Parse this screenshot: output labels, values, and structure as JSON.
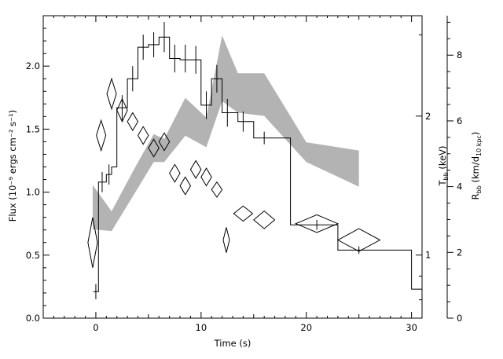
{
  "chart_data": {
    "type": "line",
    "xlabel": "Time (s)",
    "xlim": [
      -5,
      31
    ],
    "x_ticks": [
      0,
      10,
      20,
      30
    ],
    "left_axis": {
      "label": "Flux (10⁻⁹ ergs cm⁻² s⁻¹)",
      "range": [
        0,
        2.4
      ],
      "ticks": [
        0.0,
        0.5,
        1.0,
        1.5,
        2.0
      ],
      "tick_labels": [
        "0.0",
        "0.5",
        "1.0",
        "1.5",
        "2.0"
      ]
    },
    "right_axis_inner": {
      "label": "T_bb (keV)",
      "label_main": "T",
      "label_sub": "bb",
      "label_rest": " (keV)",
      "scale": "log",
      "range": [
        0.73,
        3.3
      ],
      "ticks": [
        1,
        2
      ],
      "tick_labels": [
        "1",
        "2"
      ]
    },
    "right_axis_outer": {
      "label": "R_bb (km/d_10 kpc)",
      "label_main": "R",
      "label_sub": "bb",
      "label_mid": " (km/d",
      "label_sub2": "10 kpc",
      "label_end": ")",
      "range": [
        0,
        9.2
      ],
      "ticks": [
        0,
        2,
        4,
        6,
        8
      ],
      "tick_labels": [
        "0",
        "2",
        "4",
        "6",
        "8"
      ]
    },
    "series": [
      {
        "kind": "flux-histogram",
        "color": "#000000",
        "bins": [
          {
            "x0": -0.25,
            "x1": 0.25,
            "y": 0.21
          },
          {
            "x0": 0.25,
            "x1": 1.0,
            "y": 1.08
          },
          {
            "x0": 1.0,
            "x1": 1.5,
            "y": 1.14
          },
          {
            "x0": 1.5,
            "x1": 2.0,
            "y": 1.2
          },
          {
            "x0": 2.0,
            "x1": 3.0,
            "y": 1.67
          },
          {
            "x0": 3.0,
            "x1": 4.0,
            "y": 1.9
          },
          {
            "x0": 4.0,
            "x1": 5.0,
            "y": 2.15
          },
          {
            "x0": 5.0,
            "x1": 6.0,
            "y": 2.17
          },
          {
            "x0": 6.0,
            "x1": 7.0,
            "y": 2.23
          },
          {
            "x0": 7.0,
            "x1": 8.0,
            "y": 2.06
          },
          {
            "x0": 8.0,
            "x1": 10.0,
            "y": 2.05
          },
          {
            "x0": 10.0,
            "x1": 11.0,
            "y": 1.69
          },
          {
            "x0": 11.0,
            "x1": 12.0,
            "y": 1.9
          },
          {
            "x0": 12.0,
            "x1": 13.5,
            "y": 1.63
          },
          {
            "x0": 13.5,
            "x1": 15.0,
            "y": 1.56
          },
          {
            "x0": 15.0,
            "x1": 18.5,
            "y": 1.43
          },
          {
            "x0": 18.5,
            "x1": 23.0,
            "y": 0.74
          },
          {
            "x0": 23.0,
            "x1": 30.0,
            "y": 0.54
          },
          {
            "x0": 30.0,
            "x1": 31.0,
            "y": 0.23
          }
        ],
        "errors": [
          {
            "x": 0.0,
            "y": 0.21,
            "err": 0.06
          },
          {
            "x": 0.6,
            "y": 1.08,
            "err": 0.08
          },
          {
            "x": 1.25,
            "y": 1.14,
            "err": 0.08
          },
          {
            "x": 2.5,
            "y": 1.67,
            "err": 0.1
          },
          {
            "x": 3.5,
            "y": 1.9,
            "err": 0.1
          },
          {
            "x": 4.5,
            "y": 2.15,
            "err": 0.1
          },
          {
            "x": 5.5,
            "y": 2.17,
            "err": 0.1
          },
          {
            "x": 6.5,
            "y": 2.23,
            "err": 0.12
          },
          {
            "x": 7.5,
            "y": 2.06,
            "err": 0.11
          },
          {
            "x": 8.5,
            "y": 2.06,
            "err": 0.11
          },
          {
            "x": 9.5,
            "y": 2.05,
            "err": 0.11
          },
          {
            "x": 10.5,
            "y": 1.69,
            "err": 0.11
          },
          {
            "x": 11.5,
            "y": 1.9,
            "err": 0.11
          },
          {
            "x": 12.5,
            "y": 1.63,
            "err": 0.11
          },
          {
            "x": 14.0,
            "y": 1.56,
            "err": 0.08
          },
          {
            "x": 16.0,
            "y": 1.43,
            "err": 0.05
          },
          {
            "x": 21.0,
            "y": 0.74,
            "err": 0.04
          },
          {
            "x": 25.0,
            "y": 0.54,
            "err": 0.03
          }
        ]
      },
      {
        "kind": "temperature-diamonds",
        "color": "#000000",
        "points": [
          {
            "x": -0.3,
            "y": 0.6,
            "dx": 0.45,
            "dy": 0.2
          },
          {
            "x": 0.5,
            "y": 1.45,
            "dx": 0.45,
            "dy": 0.12
          },
          {
            "x": 1.5,
            "y": 1.78,
            "dx": 0.45,
            "dy": 0.12
          },
          {
            "x": 2.5,
            "y": 1.65,
            "dx": 0.5,
            "dy": 0.09
          },
          {
            "x": 3.5,
            "y": 1.56,
            "dx": 0.5,
            "dy": 0.07
          },
          {
            "x": 4.5,
            "y": 1.45,
            "dx": 0.5,
            "dy": 0.07
          },
          {
            "x": 5.5,
            "y": 1.35,
            "dx": 0.5,
            "dy": 0.07
          },
          {
            "x": 6.5,
            "y": 1.4,
            "dx": 0.5,
            "dy": 0.07
          },
          {
            "x": 7.5,
            "y": 1.15,
            "dx": 0.5,
            "dy": 0.07
          },
          {
            "x": 8.5,
            "y": 1.05,
            "dx": 0.5,
            "dy": 0.07
          },
          {
            "x": 9.5,
            "y": 1.18,
            "dx": 0.5,
            "dy": 0.07
          },
          {
            "x": 10.5,
            "y": 1.12,
            "dx": 0.5,
            "dy": 0.07
          },
          {
            "x": 11.5,
            "y": 1.02,
            "dx": 0.5,
            "dy": 0.06
          },
          {
            "x": 12.4,
            "y": 0.62,
            "dx": 0.3,
            "dy": 0.1
          },
          {
            "x": 14.0,
            "y": 0.83,
            "dx": 0.9,
            "dy": 0.06
          },
          {
            "x": 16.0,
            "y": 0.78,
            "dx": 1.0,
            "dy": 0.07
          },
          {
            "x": 21.0,
            "y": 0.75,
            "dx": 2.0,
            "dy": 0.07
          },
          {
            "x": 25.0,
            "y": 0.62,
            "dx": 2.0,
            "dy": 0.09
          }
        ]
      },
      {
        "kind": "radius-band",
        "color": "#b3b3b3",
        "x": [
          -0.3,
          1.5,
          3.5,
          5.5,
          6.5,
          8.5,
          10.5,
          12.0,
          13.5,
          16.0,
          20.0,
          25.0
        ],
        "y_low": [
          2.7,
          2.65,
          3.7,
          4.75,
          4.75,
          5.55,
          5.2,
          6.6,
          6.25,
          6.15,
          4.75,
          4.0
        ],
        "y_high": [
          4.05,
          3.25,
          4.45,
          5.6,
          5.45,
          6.7,
          6.1,
          8.6,
          7.45,
          7.45,
          5.35,
          5.1
        ]
      }
    ]
  }
}
